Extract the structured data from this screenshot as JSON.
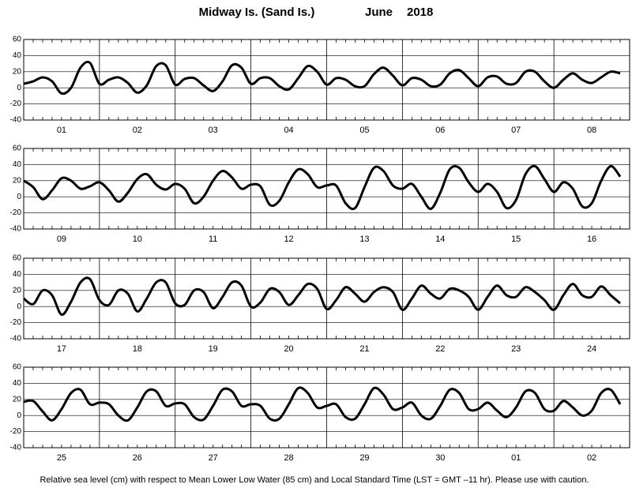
{
  "title": "Midway Is. (Sand Is.)",
  "month": "June",
  "year": "2018",
  "note": "Relative sea level (cm) with respect to Mean Lower Low Water (85 cm) and Local Standard Time (LST = GMT –11 hr). Please use with caution.",
  "chart_data": [
    {
      "type": "line",
      "ylim": [
        -40,
        60
      ],
      "yticks": [
        -40,
        -20,
        0,
        20,
        40,
        60
      ],
      "color": "#000000",
      "grid": true,
      "days": [
        {
          "label": "01",
          "values": [
            5,
            8,
            13,
            8,
            -7,
            0,
            25,
            31
          ]
        },
        {
          "label": "02",
          "values": [
            5,
            10,
            13,
            6,
            -6,
            3,
            27,
            28
          ]
        },
        {
          "label": "03",
          "values": [
            4,
            11,
            12,
            3,
            -4,
            8,
            28,
            25
          ]
        },
        {
          "label": "04",
          "values": [
            5,
            12,
            12,
            2,
            -2,
            12,
            27,
            20
          ]
        },
        {
          "label": "05",
          "values": [
            4,
            12,
            10,
            2,
            2,
            17,
            25,
            15
          ]
        },
        {
          "label": "06",
          "values": [
            3,
            12,
            10,
            2,
            4,
            18,
            22,
            12
          ]
        },
        {
          "label": "07",
          "values": [
            2,
            13,
            14,
            5,
            6,
            20,
            20,
            8
          ]
        },
        {
          "label": "08",
          "values": [
            0,
            10,
            18,
            10,
            6,
            13,
            20,
            18
          ]
        }
      ]
    },
    {
      "type": "line",
      "ylim": [
        -40,
        60
      ],
      "yticks": [
        -40,
        -20,
        0,
        20,
        40,
        60
      ],
      "color": "#000000",
      "grid": true,
      "days": [
        {
          "label": "09",
          "values": [
            20,
            12,
            -3,
            8,
            23,
            20,
            10,
            13
          ]
        },
        {
          "label": "10",
          "values": [
            18,
            8,
            -6,
            5,
            22,
            28,
            15,
            9
          ]
        },
        {
          "label": "11",
          "values": [
            16,
            10,
            -8,
            0,
            20,
            32,
            24,
            10
          ]
        },
        {
          "label": "12",
          "values": [
            15,
            13,
            -10,
            -5,
            18,
            34,
            28,
            12
          ]
        },
        {
          "label": "13",
          "values": [
            14,
            14,
            -8,
            -14,
            12,
            36,
            32,
            14
          ]
        },
        {
          "label": "14",
          "values": [
            10,
            16,
            0,
            -15,
            5,
            34,
            36,
            18
          ]
        },
        {
          "label": "15",
          "values": [
            6,
            16,
            6,
            -14,
            -4,
            28,
            38,
            22
          ]
        },
        {
          "label": "16",
          "values": [
            6,
            18,
            10,
            -12,
            -8,
            20,
            38,
            25
          ]
        }
      ]
    },
    {
      "type": "line",
      "ylim": [
        -40,
        60
      ],
      "yticks": [
        -40,
        -20,
        0,
        20,
        40,
        60
      ],
      "color": "#000000",
      "grid": true,
      "days": [
        {
          "label": "17",
          "values": [
            10,
            3,
            20,
            14,
            -10,
            6,
            30,
            34
          ]
        },
        {
          "label": "18",
          "values": [
            8,
            2,
            20,
            16,
            -6,
            10,
            30,
            30
          ]
        },
        {
          "label": "19",
          "values": [
            4,
            2,
            20,
            18,
            -2,
            12,
            30,
            26
          ]
        },
        {
          "label": "20",
          "values": [
            0,
            5,
            22,
            18,
            2,
            14,
            28,
            22
          ]
        },
        {
          "label": "21",
          "values": [
            -3,
            8,
            24,
            16,
            6,
            18,
            24,
            18
          ]
        },
        {
          "label": "22",
          "values": [
            -4,
            10,
            26,
            16,
            10,
            22,
            20,
            12
          ]
        },
        {
          "label": "23",
          "values": [
            -4,
            12,
            26,
            14,
            12,
            24,
            18,
            8
          ]
        },
        {
          "label": "24",
          "values": [
            -4,
            14,
            28,
            14,
            12,
            25,
            14,
            4
          ]
        }
      ]
    },
    {
      "type": "line",
      "ylim": [
        -40,
        60
      ],
      "yticks": [
        -40,
        -20,
        0,
        20,
        40,
        60
      ],
      "color": "#000000",
      "grid": true,
      "days": [
        {
          "label": "25",
          "values": [
            17,
            18,
            5,
            -6,
            8,
            28,
            32,
            14
          ]
        },
        {
          "label": "26",
          "values": [
            16,
            14,
            0,
            -6,
            10,
            30,
            30,
            12
          ]
        },
        {
          "label": "27",
          "values": [
            15,
            14,
            -2,
            -5,
            12,
            32,
            30,
            12
          ]
        },
        {
          "label": "28",
          "values": [
            14,
            12,
            -4,
            -4,
            14,
            34,
            28,
            10
          ]
        },
        {
          "label": "29",
          "values": [
            12,
            14,
            -2,
            -4,
            14,
            34,
            26,
            8
          ]
        },
        {
          "label": "30",
          "values": [
            10,
            16,
            0,
            -4,
            12,
            32,
            28,
            8
          ]
        },
        {
          "label": "01",
          "values": [
            8,
            16,
            6,
            -2,
            10,
            30,
            28,
            8
          ]
        },
        {
          "label": "02",
          "values": [
            6,
            18,
            10,
            0,
            6,
            28,
            32,
            14
          ]
        }
      ]
    }
  ]
}
